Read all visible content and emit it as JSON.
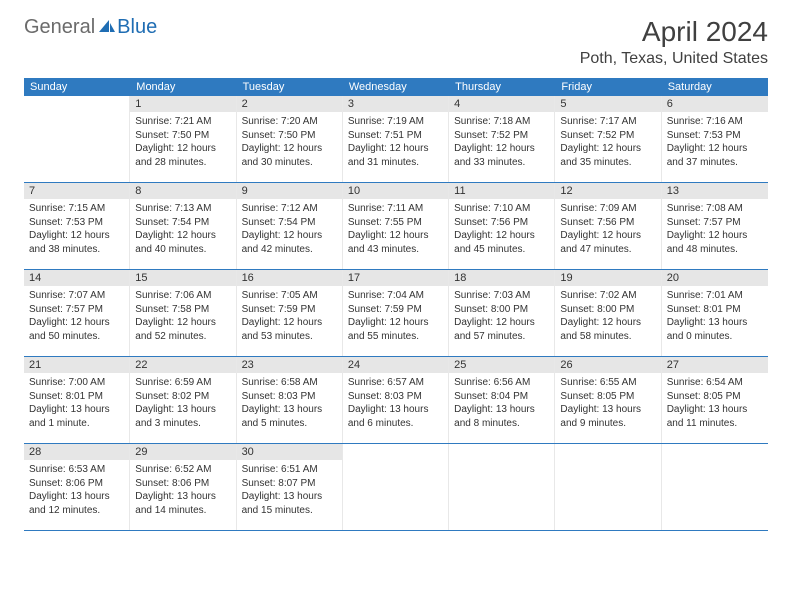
{
  "logo": {
    "general": "General",
    "blue": "Blue"
  },
  "title": "April 2024",
  "location": "Poth, Texas, United States",
  "colors": {
    "header_bg": "#2f7ac0",
    "header_text": "#ffffff",
    "daynum_bg": "#e6e6e6",
    "text": "#333333",
    "logo_gray": "#6b6b6b",
    "logo_blue": "#1f6db3",
    "week_border": "#2f7ac0"
  },
  "weekdays": [
    "Sunday",
    "Monday",
    "Tuesday",
    "Wednesday",
    "Thursday",
    "Friday",
    "Saturday"
  ],
  "start_offset": 1,
  "days": [
    {
      "n": 1,
      "sr": "7:21 AM",
      "ss": "7:50 PM",
      "dl": "Daylight: 12 hours and 28 minutes."
    },
    {
      "n": 2,
      "sr": "7:20 AM",
      "ss": "7:50 PM",
      "dl": "Daylight: 12 hours and 30 minutes."
    },
    {
      "n": 3,
      "sr": "7:19 AM",
      "ss": "7:51 PM",
      "dl": "Daylight: 12 hours and 31 minutes."
    },
    {
      "n": 4,
      "sr": "7:18 AM",
      "ss": "7:52 PM",
      "dl": "Daylight: 12 hours and 33 minutes."
    },
    {
      "n": 5,
      "sr": "7:17 AM",
      "ss": "7:52 PM",
      "dl": "Daylight: 12 hours and 35 minutes."
    },
    {
      "n": 6,
      "sr": "7:16 AM",
      "ss": "7:53 PM",
      "dl": "Daylight: 12 hours and 37 minutes."
    },
    {
      "n": 7,
      "sr": "7:15 AM",
      "ss": "7:53 PM",
      "dl": "Daylight: 12 hours and 38 minutes."
    },
    {
      "n": 8,
      "sr": "7:13 AM",
      "ss": "7:54 PM",
      "dl": "Daylight: 12 hours and 40 minutes."
    },
    {
      "n": 9,
      "sr": "7:12 AM",
      "ss": "7:54 PM",
      "dl": "Daylight: 12 hours and 42 minutes."
    },
    {
      "n": 10,
      "sr": "7:11 AM",
      "ss": "7:55 PM",
      "dl": "Daylight: 12 hours and 43 minutes."
    },
    {
      "n": 11,
      "sr": "7:10 AM",
      "ss": "7:56 PM",
      "dl": "Daylight: 12 hours and 45 minutes."
    },
    {
      "n": 12,
      "sr": "7:09 AM",
      "ss": "7:56 PM",
      "dl": "Daylight: 12 hours and 47 minutes."
    },
    {
      "n": 13,
      "sr": "7:08 AM",
      "ss": "7:57 PM",
      "dl": "Daylight: 12 hours and 48 minutes."
    },
    {
      "n": 14,
      "sr": "7:07 AM",
      "ss": "7:57 PM",
      "dl": "Daylight: 12 hours and 50 minutes."
    },
    {
      "n": 15,
      "sr": "7:06 AM",
      "ss": "7:58 PM",
      "dl": "Daylight: 12 hours and 52 minutes."
    },
    {
      "n": 16,
      "sr": "7:05 AM",
      "ss": "7:59 PM",
      "dl": "Daylight: 12 hours and 53 minutes."
    },
    {
      "n": 17,
      "sr": "7:04 AM",
      "ss": "7:59 PM",
      "dl": "Daylight: 12 hours and 55 minutes."
    },
    {
      "n": 18,
      "sr": "7:03 AM",
      "ss": "8:00 PM",
      "dl": "Daylight: 12 hours and 57 minutes."
    },
    {
      "n": 19,
      "sr": "7:02 AM",
      "ss": "8:00 PM",
      "dl": "Daylight: 12 hours and 58 minutes."
    },
    {
      "n": 20,
      "sr": "7:01 AM",
      "ss": "8:01 PM",
      "dl": "Daylight: 13 hours and 0 minutes."
    },
    {
      "n": 21,
      "sr": "7:00 AM",
      "ss": "8:01 PM",
      "dl": "Daylight: 13 hours and 1 minute."
    },
    {
      "n": 22,
      "sr": "6:59 AM",
      "ss": "8:02 PM",
      "dl": "Daylight: 13 hours and 3 minutes."
    },
    {
      "n": 23,
      "sr": "6:58 AM",
      "ss": "8:03 PM",
      "dl": "Daylight: 13 hours and 5 minutes."
    },
    {
      "n": 24,
      "sr": "6:57 AM",
      "ss": "8:03 PM",
      "dl": "Daylight: 13 hours and 6 minutes."
    },
    {
      "n": 25,
      "sr": "6:56 AM",
      "ss": "8:04 PM",
      "dl": "Daylight: 13 hours and 8 minutes."
    },
    {
      "n": 26,
      "sr": "6:55 AM",
      "ss": "8:05 PM",
      "dl": "Daylight: 13 hours and 9 minutes."
    },
    {
      "n": 27,
      "sr": "6:54 AM",
      "ss": "8:05 PM",
      "dl": "Daylight: 13 hours and 11 minutes."
    },
    {
      "n": 28,
      "sr": "6:53 AM",
      "ss": "8:06 PM",
      "dl": "Daylight: 13 hours and 12 minutes."
    },
    {
      "n": 29,
      "sr": "6:52 AM",
      "ss": "8:06 PM",
      "dl": "Daylight: 13 hours and 14 minutes."
    },
    {
      "n": 30,
      "sr": "6:51 AM",
      "ss": "8:07 PM",
      "dl": "Daylight: 13 hours and 15 minutes."
    }
  ],
  "labels": {
    "sunrise_prefix": "Sunrise: ",
    "sunset_prefix": "Sunset: "
  }
}
